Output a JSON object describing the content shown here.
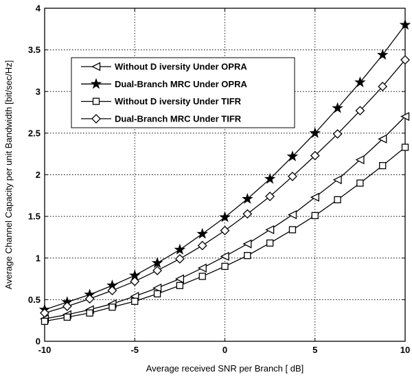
{
  "chart_data": {
    "type": "line",
    "title": "",
    "xlabel": "Average received SNR per Branch [ dB]",
    "ylabel": "Average Channel Capacity per unit Bandwidth [bit/sec/Hz]",
    "xlim": [
      -10,
      10
    ],
    "ylim": [
      0,
      4
    ],
    "xticks": [
      -10,
      -5,
      0,
      5,
      10
    ],
    "yticks": [
      0,
      0.5,
      1,
      1.5,
      2,
      2.5,
      3,
      3.5,
      4
    ],
    "xtick_labels": [
      "-10",
      "-5",
      "0",
      "5",
      "10"
    ],
    "ytick_labels": [
      "0",
      "0.5",
      "1",
      "1.5",
      "2",
      "2.5",
      "3",
      "3.5",
      "4"
    ],
    "grid": true,
    "legend_position": "upper-left",
    "x": [
      -10,
      -8.75,
      -7.5,
      -6.25,
      -5,
      -3.75,
      -2.5,
      -1.25,
      0,
      1.25,
      2.5,
      3.75,
      5,
      6.25,
      7.5,
      8.75,
      10
    ],
    "series": [
      {
        "name": "Without D iversity Under OPRA",
        "marker": "triangle-left",
        "values": [
          0.27,
          0.32,
          0.38,
          0.45,
          0.54,
          0.64,
          0.75,
          0.88,
          1.02,
          1.17,
          1.34,
          1.52,
          1.73,
          1.94,
          2.18,
          2.43,
          2.7
        ]
      },
      {
        "name": "Dual-Branch MRC Under OPRA",
        "marker": "star",
        "values": [
          0.38,
          0.47,
          0.56,
          0.67,
          0.79,
          0.94,
          1.1,
          1.29,
          1.49,
          1.71,
          1.95,
          2.22,
          2.5,
          2.8,
          3.11,
          3.44,
          3.8
        ]
      },
      {
        "name": "Without D iversity Under TIFR",
        "marker": "square",
        "values": [
          0.24,
          0.29,
          0.34,
          0.41,
          0.48,
          0.57,
          0.67,
          0.78,
          0.9,
          1.03,
          1.18,
          1.34,
          1.51,
          1.7,
          1.9,
          2.11,
          2.33
        ]
      },
      {
        "name": "Dual-Branch MRC Under TIFR",
        "marker": "diamond",
        "values": [
          0.34,
          0.42,
          0.51,
          0.61,
          0.72,
          0.85,
          0.99,
          1.15,
          1.33,
          1.53,
          1.74,
          1.98,
          2.23,
          2.49,
          2.77,
          3.06,
          3.38
        ]
      }
    ]
  }
}
